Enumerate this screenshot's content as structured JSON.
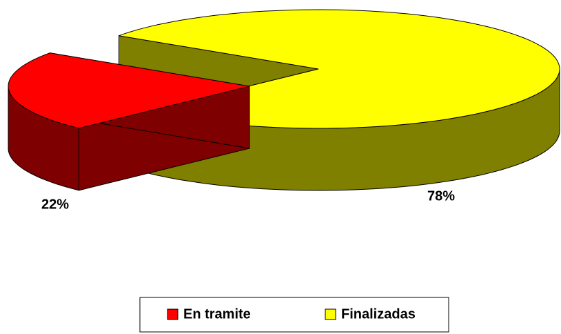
{
  "chart_data": {
    "type": "pie",
    "categories": [
      "En tramite",
      "Finalizadas"
    ],
    "values": [
      22,
      78
    ],
    "value_labels": [
      "22%",
      "78%"
    ],
    "colors": [
      "#ff0000",
      "#ffff00"
    ]
  }
}
